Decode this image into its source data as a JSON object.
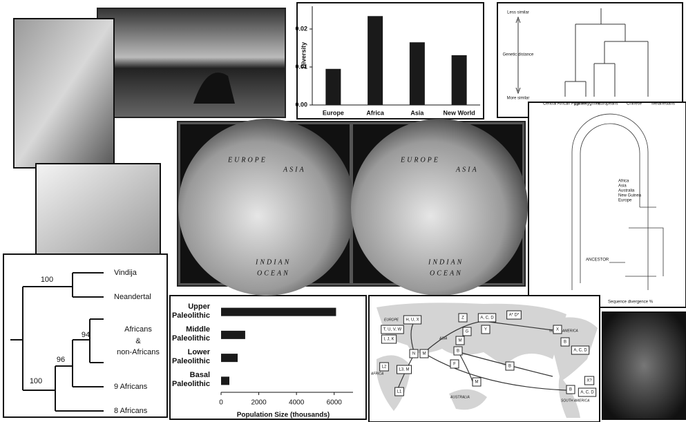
{
  "chart_data": [
    {
      "type": "bar",
      "categories": [
        "Europe",
        "Africa",
        "Asia",
        "New World"
      ],
      "values": [
        0.0095,
        0.0234,
        0.0165,
        0.0131
      ],
      "color": "#1a1a1a",
      "ylabel": "Diversity",
      "ylim": [
        0,
        0.026
      ],
      "yticks": [
        {
          "value": 0,
          "label": "0.00"
        },
        {
          "value": 0.01,
          "label": "0.01"
        },
        {
          "value": 0.02,
          "label": "0.02"
        }
      ]
    },
    {
      "type": "barh",
      "categories": [
        "Upper Paleolithic",
        "Middle Paleolithic",
        "Lower Paleolithic",
        "Basal Paleolithic"
      ],
      "values": [
        6100,
        1280,
        880,
        440
      ],
      "color": "#1a1a1a",
      "xlabel": "Population Size (thousands)",
      "xlim": [
        0,
        7000
      ],
      "xticks": [
        0,
        2000,
        4000,
        6000
      ]
    }
  ],
  "dendrogram": {
    "top": "Less similar",
    "axis_label": "Genetic distance",
    "bottom": "More similar",
    "leaves": [
      "Central African Pygmies",
      "Zaire Pygmies",
      "Europeans",
      "Chinese",
      "Melanesians"
    ]
  },
  "globes": {
    "labels": [
      "EUROPE",
      "ASIA",
      "INDIAN",
      "OCEAN"
    ]
  },
  "circular_tree": {
    "legend": [
      "Africa",
      "Asia",
      "Australia",
      "New Guinea",
      "Europe"
    ],
    "root": "ANCESTOR",
    "x_label": "Sequence divergence %"
  },
  "neandertal_tree": {
    "leaves": [
      "Vindija",
      "Neandertal",
      "Africans",
      "&",
      "non-Africans",
      "9 Africans",
      "8 Africans"
    ],
    "support": [
      100,
      94,
      96,
      100
    ]
  },
  "map": {
    "regions": [
      "EUROPE",
      "ASIA",
      "AFRICA",
      "AUSTRALIA",
      "NORTH AMERICA",
      "SOUTH AMERICA"
    ],
    "haplogroups": [
      "H, U, X",
      "T, U, V, W",
      "I, J, K",
      "L2",
      "L3, M",
      "L1",
      "N",
      "M",
      "Z",
      "M",
      "B",
      "G",
      "Y",
      "A, C, D",
      "A* D*",
      "X",
      "B",
      "A, C, D",
      "F",
      "M",
      "B",
      "B",
      "X?",
      "A, C, D"
    ]
  }
}
